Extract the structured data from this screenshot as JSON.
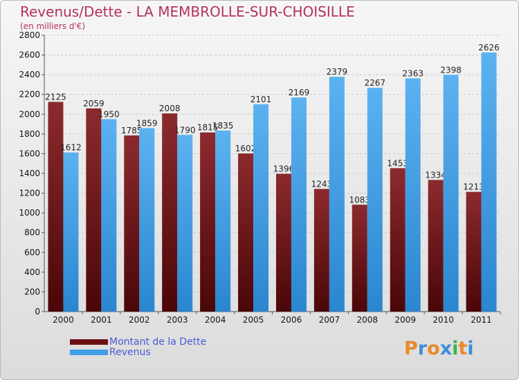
{
  "header": {
    "title": "Revenus/Dette - LA MEMBROLLE-SUR-CHOISILLE",
    "subtitle": "(en milliers d'€)"
  },
  "legend": [
    {
      "label": "Montant de la Dette",
      "color": "#6b0f12"
    },
    {
      "label": "Revenus",
      "color": "#3f9fe6"
    }
  ],
  "logo": {
    "letters": [
      "P",
      "r",
      "o",
      "x",
      "i",
      "t",
      "i"
    ],
    "colors": [
      "#e8892a",
      "#3f8fd8",
      "#e8892a",
      "#3f8fd8",
      "#3bb54a",
      "#e8892a",
      "#3f8fd8"
    ]
  },
  "chart_data": {
    "type": "bar",
    "title": "Revenus/Dette - LA MEMBROLLE-SUR-CHOISILLE",
    "ylabel": "(en milliers d'€)",
    "xlabel": "",
    "categories": [
      "2000",
      "2001",
      "2002",
      "2003",
      "2004",
      "2005",
      "2006",
      "2007",
      "2008",
      "2009",
      "2010",
      "2011"
    ],
    "series": [
      {
        "name": "Montant de la Dette",
        "values": [
          2125,
          2059,
          1785,
          2008,
          1815,
          1602,
          1396,
          1243,
          1083,
          1453,
          1334,
          1213
        ]
      },
      {
        "name": "Revenus",
        "values": [
          1612,
          1950,
          1859,
          1790,
          1835,
          2101,
          2169,
          2379,
          2267,
          2363,
          2398,
          2626
        ]
      }
    ],
    "ylim": [
      0,
      2800
    ],
    "yticks": [
      0,
      200,
      400,
      600,
      800,
      1000,
      1200,
      1400,
      1600,
      1800,
      2000,
      2200,
      2400,
      2600,
      2800
    ],
    "grid": true,
    "legend_position": "bottom-left"
  }
}
